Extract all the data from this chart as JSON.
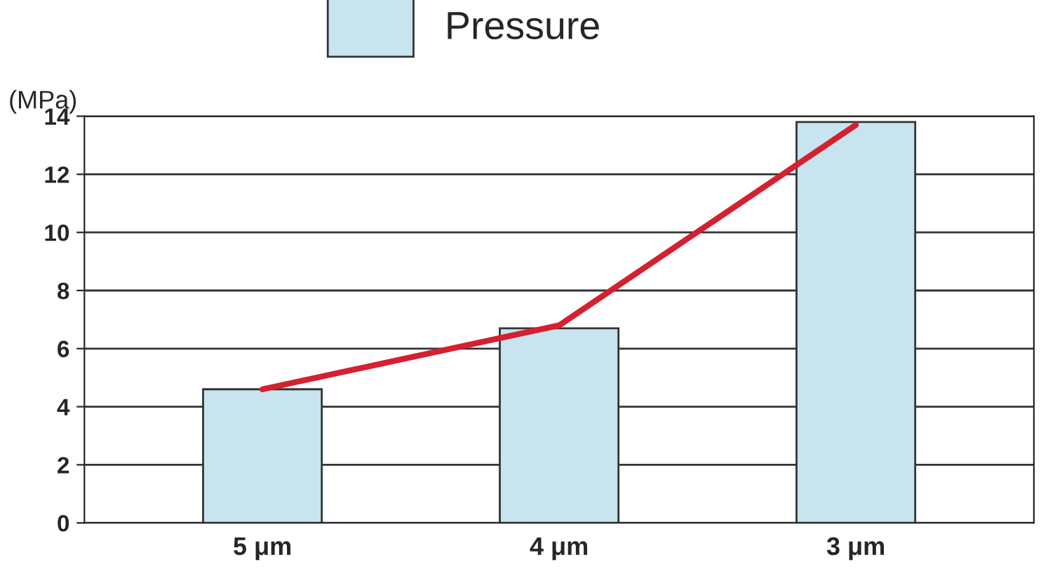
{
  "chart_data": {
    "type": "bar",
    "ylabel": "(MPa)",
    "categories": [
      "5 μm",
      "4 μm",
      "3 μm"
    ],
    "series": [
      {
        "name": "Pressure",
        "color": "#c8e4ee",
        "values": [
          4.6,
          6.7,
          13.8
        ]
      },
      {
        "type": "line",
        "color": "#d42030",
        "values": [
          4.6,
          6.8,
          13.7
        ]
      }
    ],
    "ylim": [
      0,
      14
    ],
    "yticks": [
      0,
      2,
      4,
      6,
      8,
      10,
      12,
      14
    ],
    "grid": "y",
    "legend": "top"
  }
}
